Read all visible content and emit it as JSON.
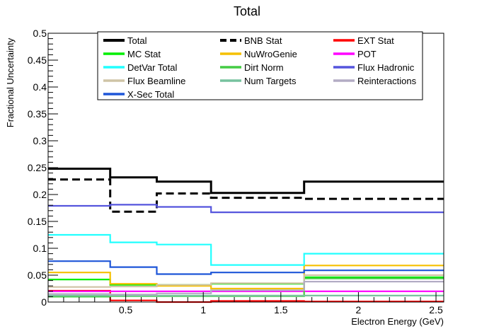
{
  "chart_data": {
    "type": "line",
    "title": "Total",
    "xlabel": "Electron Energy (GeV)",
    "ylabel": "Fractional Uncertainty",
    "xlim": [
      0.0,
      2.55
    ],
    "ylim": [
      0.0,
      0.5
    ],
    "x_ticks": [
      "0.5",
      "1",
      "1.5",
      "2",
      "2.5"
    ],
    "y_ticks": [
      "0",
      "0.05",
      "0.1",
      "0.15",
      "0.2",
      "0.25",
      "0.3",
      "0.35",
      "0.4",
      "0.45",
      "0.5"
    ],
    "bin_edges": [
      0.0,
      0.4,
      0.7,
      1.05,
      1.65,
      2.55
    ],
    "grid": false,
    "legend_position": "top",
    "series": [
      {
        "name": "Total",
        "color": "#000000",
        "dash": "solid",
        "values": [
          0.248,
          0.232,
          0.224,
          0.203,
          0.224
        ]
      },
      {
        "name": "BNB Stat",
        "color": "#000000",
        "dash": "dashed",
        "values": [
          0.228,
          0.168,
          0.202,
          0.194,
          0.192
        ]
      },
      {
        "name": "EXT Stat",
        "color": "#ff0000",
        "dash": "solid",
        "values": [
          0.021,
          0.003,
          0.0,
          0.002,
          0.001
        ]
      },
      {
        "name": "MC Stat",
        "color": "#00ee00",
        "dash": "solid",
        "values": [
          0.042,
          0.032,
          0.032,
          0.034,
          0.046
        ]
      },
      {
        "name": "NuWroGenie",
        "color": "#f5c000",
        "dash": "solid",
        "values": [
          0.055,
          0.034,
          0.03,
          0.025,
          0.068
        ]
      },
      {
        "name": "POT",
        "color": "#ff00ff",
        "dash": "solid",
        "values": [
          0.02,
          0.02,
          0.02,
          0.02,
          0.02
        ]
      },
      {
        "name": "DetVar Total",
        "color": "#22ffff",
        "dash": "solid",
        "values": [
          0.125,
          0.111,
          0.107,
          0.069,
          0.09
        ]
      },
      {
        "name": "Dirt Norm",
        "color": "#44cc44",
        "dash": "solid",
        "values": [
          0.01,
          0.011,
          0.011,
          0.011,
          0.044
        ]
      },
      {
        "name": "Flux Hadronic",
        "color": "#5555dd",
        "dash": "solid",
        "values": [
          0.179,
          0.181,
          0.177,
          0.167,
          0.167
        ]
      },
      {
        "name": "Flux Beamline",
        "color": "#cfc4a6",
        "dash": "solid",
        "values": [
          0.028,
          0.029,
          0.032,
          0.035,
          0.05
        ]
      },
      {
        "name": "Num Targets",
        "color": "#77c29e",
        "dash": "solid",
        "values": [
          0.012,
          0.012,
          0.012,
          0.012,
          0.012
        ]
      },
      {
        "name": "Reinteractions",
        "color": "#b3acc4",
        "dash": "solid",
        "values": [
          0.015,
          0.014,
          0.016,
          0.022,
          0.038
        ]
      },
      {
        "name": "X-Sec Total",
        "color": "#1e56d8",
        "dash": "solid",
        "values": [
          0.076,
          0.065,
          0.052,
          0.055,
          0.059
        ]
      }
    ]
  }
}
